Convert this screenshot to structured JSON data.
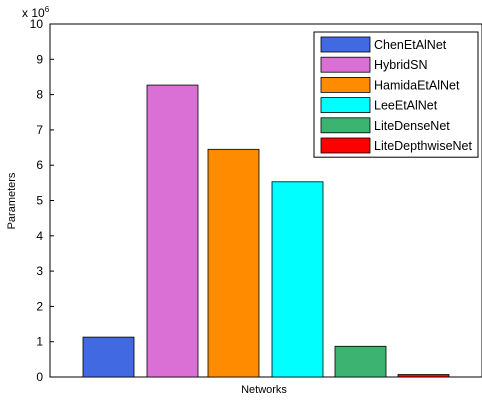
{
  "chart_data": {
    "type": "bar",
    "title": "",
    "xlabel": "Networks",
    "ylabel": "Parameters",
    "y_multiplier_label": "x 10",
    "y_multiplier_exponent": "6",
    "ylim": [
      0,
      10
    ],
    "yticks": [
      0,
      1,
      2,
      3,
      4,
      5,
      6,
      7,
      8,
      9,
      10
    ],
    "grid": false,
    "legend_position": "top-right",
    "series": [
      {
        "name": "ChenEtAlNet",
        "value": 1.13,
        "color": "#4169E1"
      },
      {
        "name": "HybridSN",
        "value": 8.27,
        "color": "#DA70D6"
      },
      {
        "name": "HamidaEtAlNet",
        "value": 6.45,
        "color": "#FF8C00"
      },
      {
        "name": "LeeEtAlNet",
        "value": 5.53,
        "color": "#00FFFF"
      },
      {
        "name": "LiteDenseNet",
        "value": 0.87,
        "color": "#3CB371"
      },
      {
        "name": "LiteDepthwiseNet",
        "value": 0.07,
        "color": "#FF0000"
      }
    ]
  }
}
